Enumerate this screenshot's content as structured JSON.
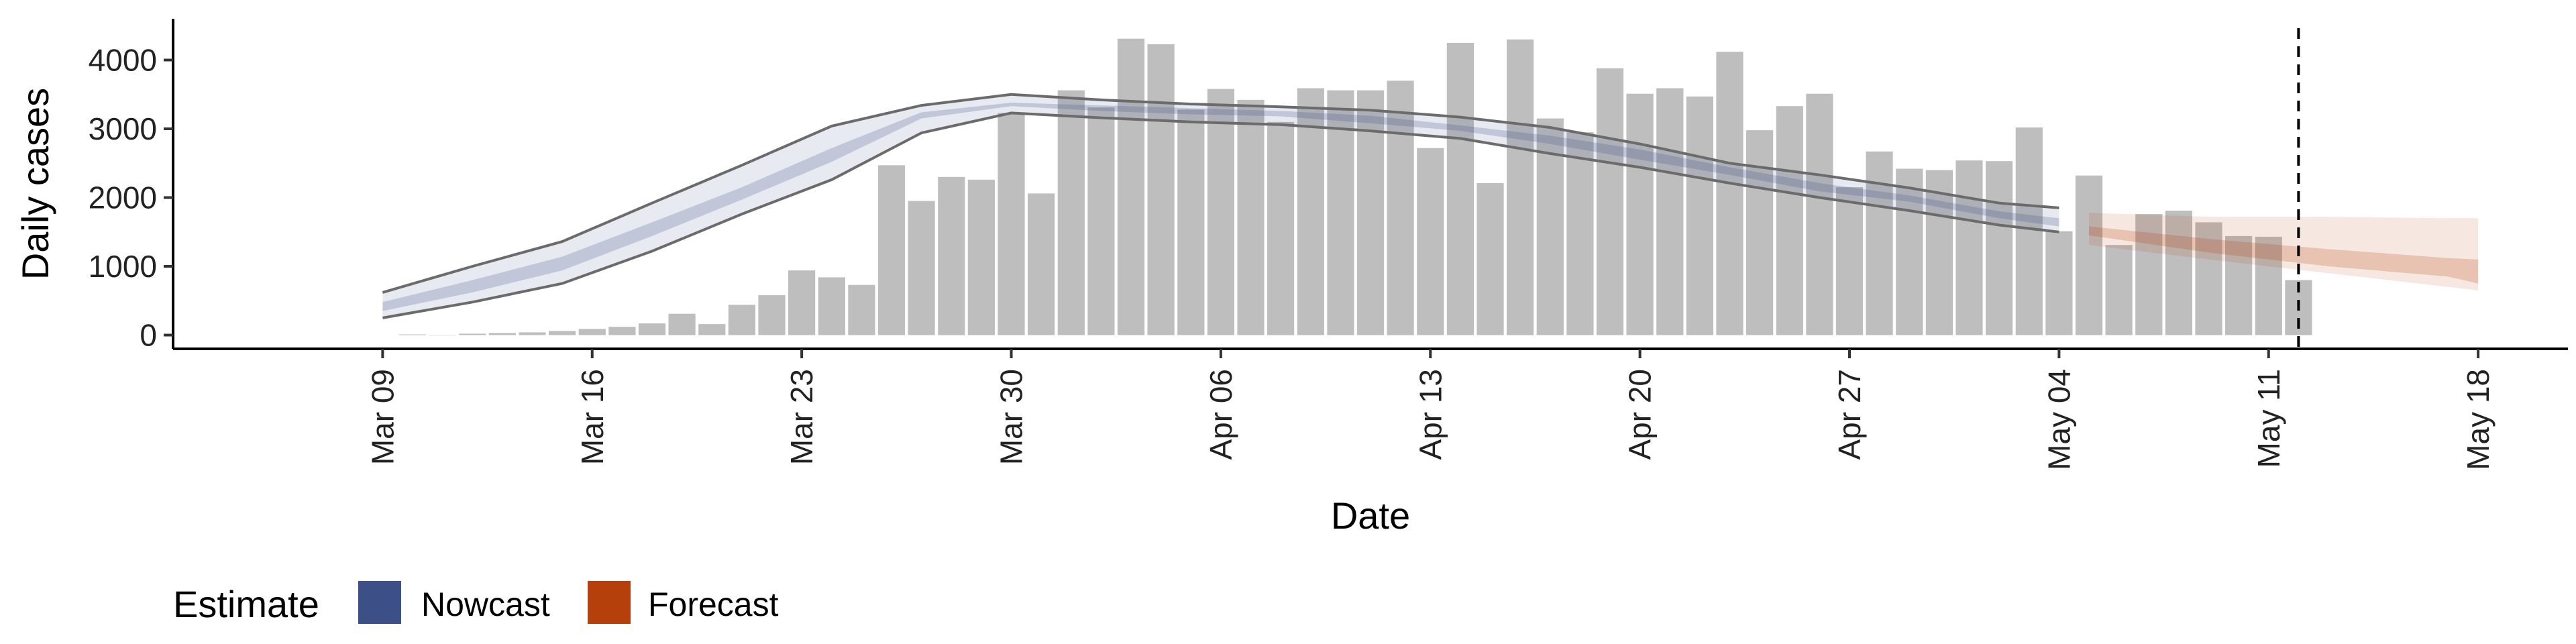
{
  "chart_data": {
    "type": "bar",
    "xlabel": "Date",
    "ylabel": "Daily cases",
    "ylim": [
      -200,
      4600
    ],
    "yticks": [
      0,
      1000,
      2000,
      3000,
      4000
    ],
    "xlim": [
      "2020-03-02",
      "2020-05-21"
    ],
    "xticks": [
      "2020-03-09",
      "2020-03-16",
      "2020-03-23",
      "2020-03-30",
      "2020-04-06",
      "2020-04-13",
      "2020-04-20",
      "2020-04-27",
      "2020-05-04",
      "2020-05-11",
      "2020-05-18"
    ],
    "xtick_labels": [
      "Mar 09",
      "Mar 16",
      "Mar 23",
      "Mar 30",
      "Apr 06",
      "Apr 13",
      "Apr 20",
      "Apr 27",
      "May 04",
      "May 11",
      "May 18"
    ],
    "vline_date": "2020-05-12",
    "bars": {
      "color": "#bebebe",
      "dates": [
        "2020-03-10",
        "2020-03-11",
        "2020-03-12",
        "2020-03-13",
        "2020-03-14",
        "2020-03-15",
        "2020-03-16",
        "2020-03-17",
        "2020-03-18",
        "2020-03-19",
        "2020-03-20",
        "2020-03-21",
        "2020-03-22",
        "2020-03-23",
        "2020-03-24",
        "2020-03-25",
        "2020-03-26",
        "2020-03-27",
        "2020-03-28",
        "2020-03-29",
        "2020-03-30",
        "2020-03-31",
        "2020-04-01",
        "2020-04-02",
        "2020-04-03",
        "2020-04-04",
        "2020-04-05",
        "2020-04-06",
        "2020-04-07",
        "2020-04-08",
        "2020-04-09",
        "2020-04-10",
        "2020-04-11",
        "2020-04-12",
        "2020-04-13",
        "2020-04-14",
        "2020-04-15",
        "2020-04-16",
        "2020-04-17",
        "2020-04-18",
        "2020-04-19",
        "2020-04-20",
        "2020-04-21",
        "2020-04-22",
        "2020-04-23",
        "2020-04-24",
        "2020-04-25",
        "2020-04-26",
        "2020-04-27",
        "2020-04-28",
        "2020-04-29",
        "2020-04-30",
        "2020-05-01",
        "2020-05-02",
        "2020-05-03",
        "2020-05-04",
        "2020-05-05",
        "2020-05-06",
        "2020-05-07",
        "2020-05-08",
        "2020-05-09",
        "2020-05-10",
        "2020-05-11",
        "2020-05-12"
      ],
      "values": [
        10,
        5,
        20,
        30,
        40,
        60,
        90,
        120,
        170,
        310,
        160,
        440,
        580,
        940,
        840,
        730,
        2470,
        1950,
        2300,
        2260,
        3230,
        2060,
        3560,
        3310,
        4310,
        4230,
        3280,
        3580,
        3420,
        3100,
        3590,
        3560,
        3560,
        3700,
        2720,
        4250,
        2210,
        4300,
        3150,
        2950,
        3880,
        3510,
        3590,
        3470,
        4120,
        2980,
        3330,
        3510,
        2150,
        2670,
        2420,
        2400,
        2540,
        2530,
        3020,
        1510,
        2320,
        1310,
        1760,
        1810,
        1640,
        1440,
        1430,
        800
      ]
    },
    "series": [
      {
        "name": "Nowcast",
        "color": "#3c4f87",
        "dates": [
          "2020-03-09",
          "2020-03-12",
          "2020-03-15",
          "2020-03-18",
          "2020-03-21",
          "2020-03-24",
          "2020-03-27",
          "2020-03-30",
          "2020-04-02",
          "2020-04-05",
          "2020-04-08",
          "2020-04-11",
          "2020-04-14",
          "2020-04-17",
          "2020-04-20",
          "2020-04-23",
          "2020-04-26",
          "2020-04-29",
          "2020-05-02",
          "2020-05-04"
        ],
        "lower90": [
          250,
          480,
          750,
          1220,
          1760,
          2260,
          2940,
          3230,
          3160,
          3100,
          3060,
          2970,
          2860,
          2640,
          2440,
          2210,
          2000,
          1810,
          1600,
          1500
        ],
        "lower50": [
          350,
          620,
          940,
          1440,
          1970,
          2520,
          3150,
          3330,
          3260,
          3210,
          3180,
          3080,
          2970,
          2780,
          2550,
          2330,
          2090,
          1940,
          1700,
          1580
        ],
        "upper50": [
          480,
          800,
          1140,
          1640,
          2150,
          2720,
          3240,
          3380,
          3340,
          3300,
          3260,
          3190,
          3050,
          2900,
          2700,
          2440,
          2210,
          2030,
          1800,
          1700
        ],
        "upper90": [
          620,
          1000,
          1360,
          1920,
          2470,
          3040,
          3340,
          3500,
          3420,
          3360,
          3320,
          3270,
          3170,
          3020,
          2780,
          2500,
          2330,
          2140,
          1920,
          1850
        ]
      },
      {
        "name": "Forecast",
        "color": "#b5400c",
        "dates": [
          "2020-05-05",
          "2020-05-09",
          "2020-05-13",
          "2020-05-17",
          "2020-05-18"
        ],
        "lower90": [
          1310,
          1100,
          900,
          700,
          650
        ],
        "lower50": [
          1450,
          1200,
          1000,
          850,
          750
        ],
        "upper50": [
          1580,
          1400,
          1250,
          1120,
          1100
        ],
        "upper90": [
          1780,
          1720,
          1720,
          1700,
          1700
        ]
      }
    ],
    "legend": {
      "title": "Estimate",
      "position": "bottom-left",
      "entries": [
        {
          "label": "Nowcast",
          "color": "#3c4f87"
        },
        {
          "label": "Forecast",
          "color": "#b5400c"
        }
      ]
    }
  }
}
